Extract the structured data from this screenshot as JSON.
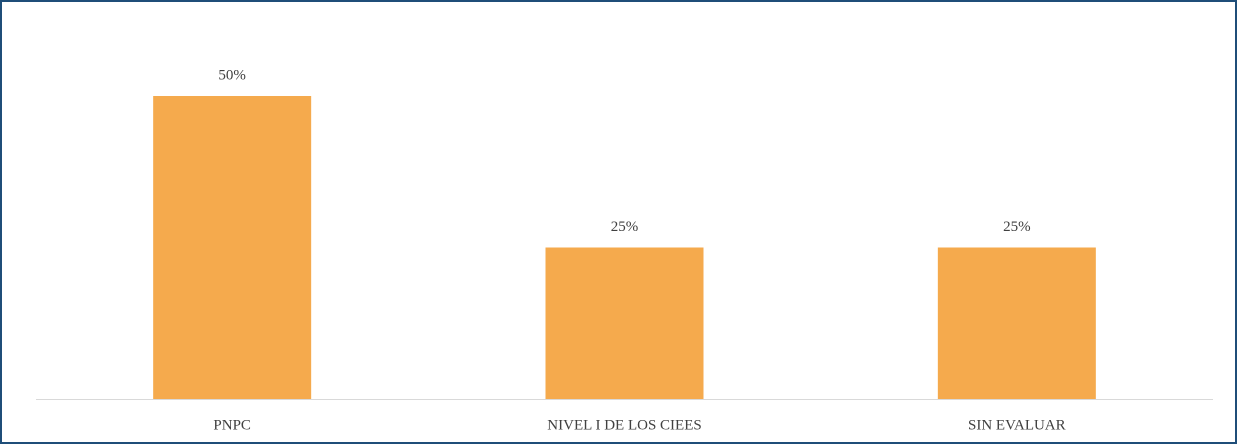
{
  "chart_data": {
    "type": "bar",
    "categories": [
      "PNPC",
      "NIVEL I DE LOS CIEES",
      "SIN EVALUAR"
    ],
    "values": [
      50,
      25,
      25
    ],
    "value_labels": [
      "50%",
      "25%",
      "25%"
    ],
    "color": "#f5aa4d"
  }
}
